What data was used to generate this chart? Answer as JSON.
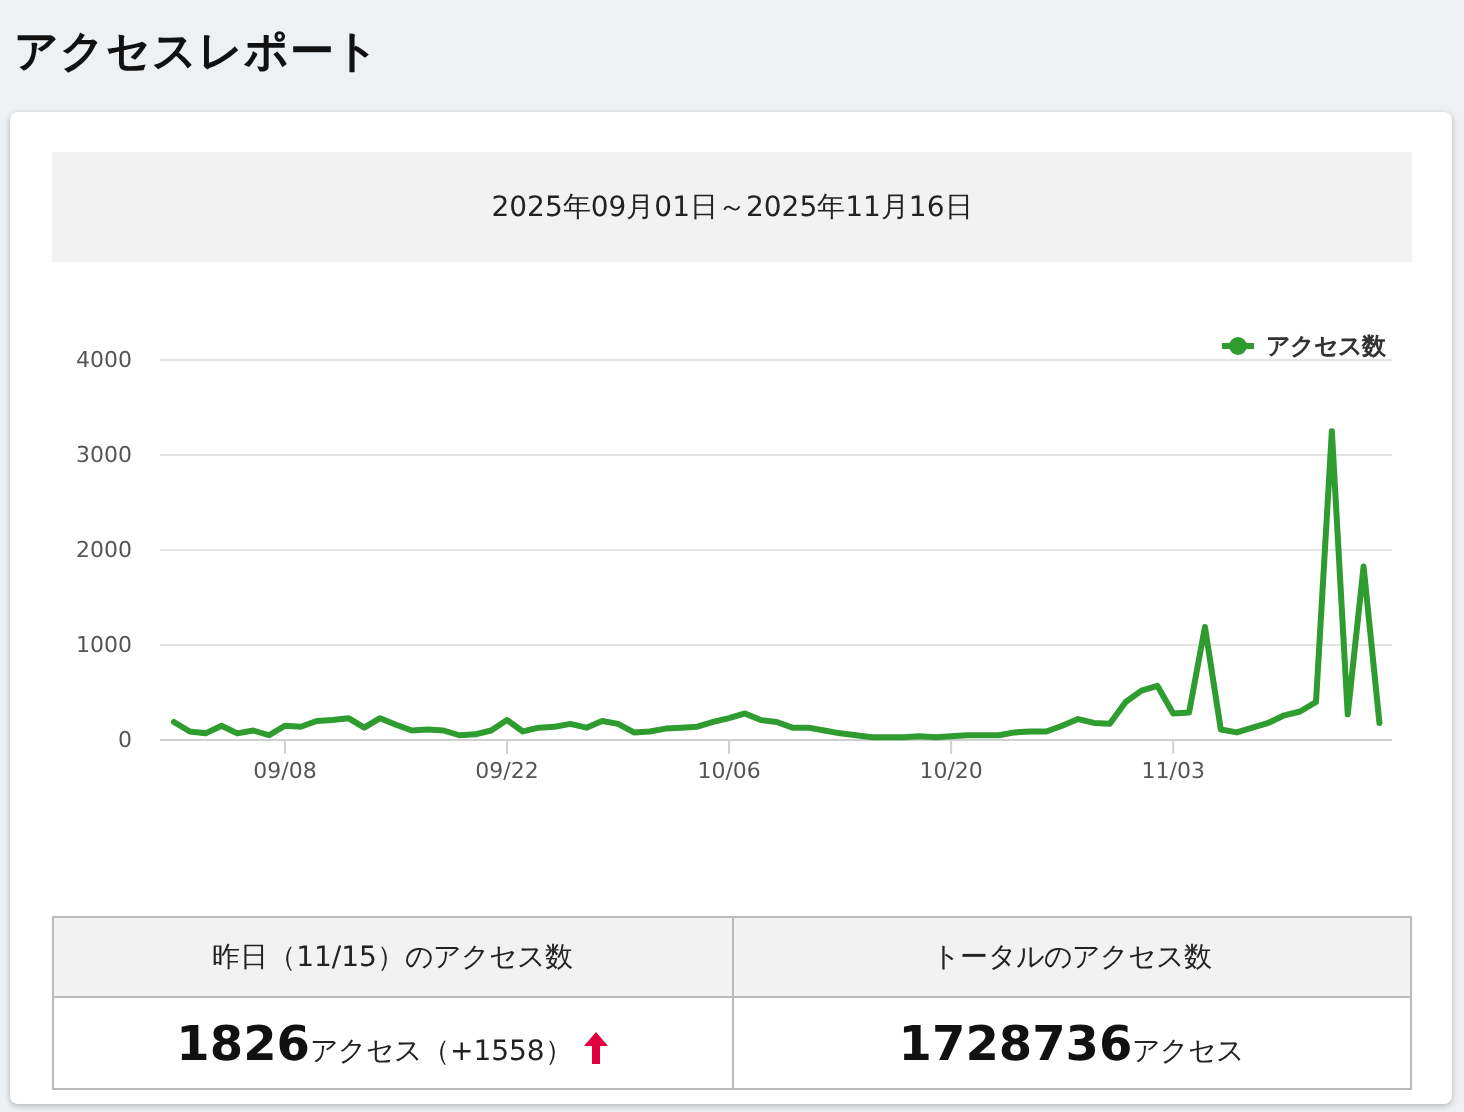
{
  "chart_data": {
    "type": "line",
    "title": "アクセスレポート",
    "subtitle": "2025年09月01日～2025年11月16日",
    "x": [
      "2025-09-01",
      "2025-09-02",
      "2025-09-03",
      "2025-09-04",
      "2025-09-05",
      "2025-09-06",
      "2025-09-07",
      "2025-09-08",
      "2025-09-09",
      "2025-09-10",
      "2025-09-11",
      "2025-09-12",
      "2025-09-13",
      "2025-09-14",
      "2025-09-15",
      "2025-09-16",
      "2025-09-17",
      "2025-09-18",
      "2025-09-19",
      "2025-09-20",
      "2025-09-21",
      "2025-09-22",
      "2025-09-23",
      "2025-09-24",
      "2025-09-25",
      "2025-09-26",
      "2025-09-27",
      "2025-09-28",
      "2025-09-29",
      "2025-09-30",
      "2025-10-01",
      "2025-10-02",
      "2025-10-03",
      "2025-10-04",
      "2025-10-05",
      "2025-10-06",
      "2025-10-07",
      "2025-10-08",
      "2025-10-09",
      "2025-10-10",
      "2025-10-11",
      "2025-10-12",
      "2025-10-13",
      "2025-10-14",
      "2025-10-15",
      "2025-10-16",
      "2025-10-17",
      "2025-10-18",
      "2025-10-19",
      "2025-10-20",
      "2025-10-21",
      "2025-10-22",
      "2025-10-23",
      "2025-10-24",
      "2025-10-25",
      "2025-10-26",
      "2025-10-27",
      "2025-10-28",
      "2025-10-29",
      "2025-10-30",
      "2025-10-31",
      "2025-11-01",
      "2025-11-02",
      "2025-11-03",
      "2025-11-04",
      "2025-11-05",
      "2025-11-06",
      "2025-11-07",
      "2025-11-08",
      "2025-11-09",
      "2025-11-10",
      "2025-11-11",
      "2025-11-12",
      "2025-11-13",
      "2025-11-14",
      "2025-11-15",
      "2025-11-16"
    ],
    "series": [
      {
        "name": "アクセス数",
        "color": "#2e9c2e",
        "values": [
          190,
          90,
          70,
          150,
          70,
          100,
          50,
          150,
          140,
          200,
          210,
          230,
          130,
          230,
          160,
          100,
          110,
          100,
          50,
          60,
          100,
          210,
          90,
          130,
          140,
          170,
          130,
          200,
          170,
          80,
          90,
          120,
          130,
          140,
          190,
          230,
          280,
          210,
          190,
          130,
          130,
          100,
          70,
          50,
          30,
          30,
          30,
          40,
          30,
          40,
          50,
          50,
          50,
          80,
          90,
          90,
          150,
          220,
          180,
          170,
          400,
          520,
          570,
          280,
          290,
          1190,
          110,
          80,
          130,
          180,
          260,
          300,
          400,
          3250,
          270,
          1826,
          180
        ]
      }
    ],
    "xlim": [
      "2025-08-31T03:00",
      "2025-11-16T19:00"
    ],
    "xticks": [
      {
        "value": "2025-09-08",
        "label": "09/08"
      },
      {
        "value": "2025-09-22",
        "label": "09/22"
      },
      {
        "value": "2025-10-06",
        "label": "10/06"
      },
      {
        "value": "2025-10-20",
        "label": "10/20"
      },
      {
        "value": "2025-11-03",
        "label": "11/03"
      }
    ],
    "ylim": [
      0,
      4000
    ],
    "yticks": [
      0,
      1000,
      2000,
      3000,
      4000
    ],
    "grid": "y",
    "legend": "top right",
    "annotations": [
      "昨日（11/15）のアクセス数",
      "トータルのアクセス数",
      "1826",
      "アクセス（+1558）",
      "1728736",
      "アクセス"
    ]
  }
}
